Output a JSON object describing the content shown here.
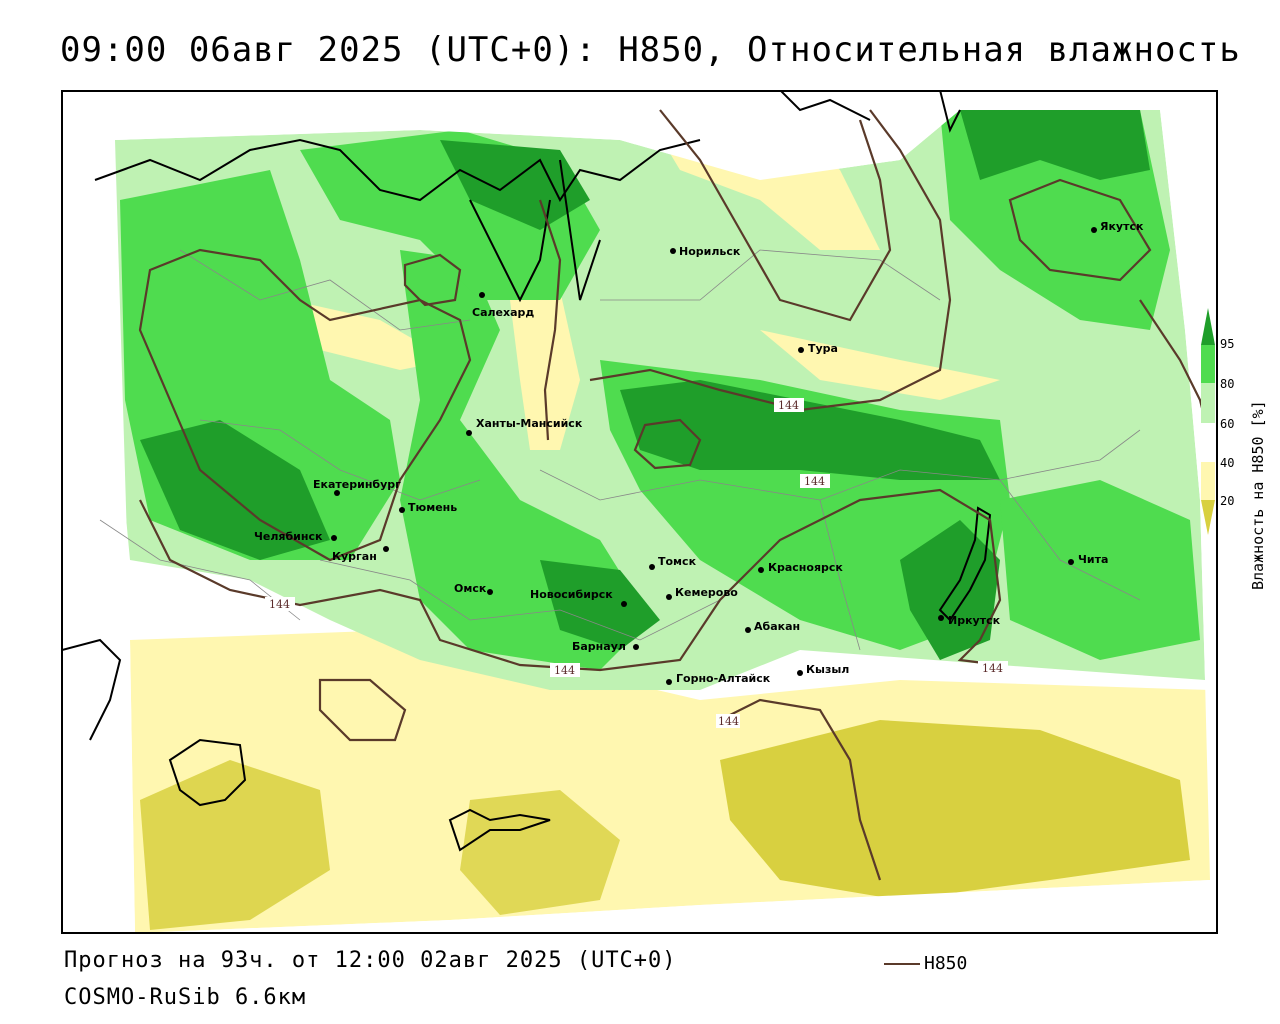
{
  "header": {
    "title": "09:00 06авг 2025 (UTC+0): H850, Относительная влажность"
  },
  "footer": {
    "forecast": "Прогноз на 93ч. от 12:00 02авг 2025 (UTC+0)",
    "model": "COSMO-RuSib 6.6км",
    "legend_label": "H850"
  },
  "colorbar": {
    "title": "Влажность на H850 [%]",
    "ticks": [
      "95",
      "80",
      "60",
      "40",
      "20"
    ],
    "colors": {
      "lt20": "#d8d040",
      "20_40": "#fff7b0",
      "40_60": "#ffffff",
      "60_80": "#bff2b3",
      "80_95": "#4fdc4f",
      "gt95": "#1f9e2a"
    }
  },
  "colors": {
    "contour": "#5a3a2a",
    "boundary": "#000000",
    "dark_green": "#1f9e2a",
    "mid_green": "#4fdc4f",
    "light_green": "#bff2b3",
    "pale_yellow": "#fff7b0",
    "olive_yellow": "#d8d040"
  },
  "contour_labels": [
    "144",
    "144",
    "144",
    "144",
    "144",
    "144"
  ],
  "cities": [
    {
      "name": "Норильск"
    },
    {
      "name": "Якутск"
    },
    {
      "name": "Салехард"
    },
    {
      "name": "Тура"
    },
    {
      "name": "Ханты-Мансийск"
    },
    {
      "name": "Екатеринбург"
    },
    {
      "name": "Тюмень"
    },
    {
      "name": "Челябинск"
    },
    {
      "name": "Курган"
    },
    {
      "name": "Омск"
    },
    {
      "name": "Томск"
    },
    {
      "name": "Красноярск"
    },
    {
      "name": "Новосибирск"
    },
    {
      "name": "Кемерово"
    },
    {
      "name": "Абакан"
    },
    {
      "name": "Барнаул"
    },
    {
      "name": "Горно-Алтайск"
    },
    {
      "name": "Кызыл"
    },
    {
      "name": "Иркутск"
    },
    {
      "name": "Чита"
    }
  ]
}
